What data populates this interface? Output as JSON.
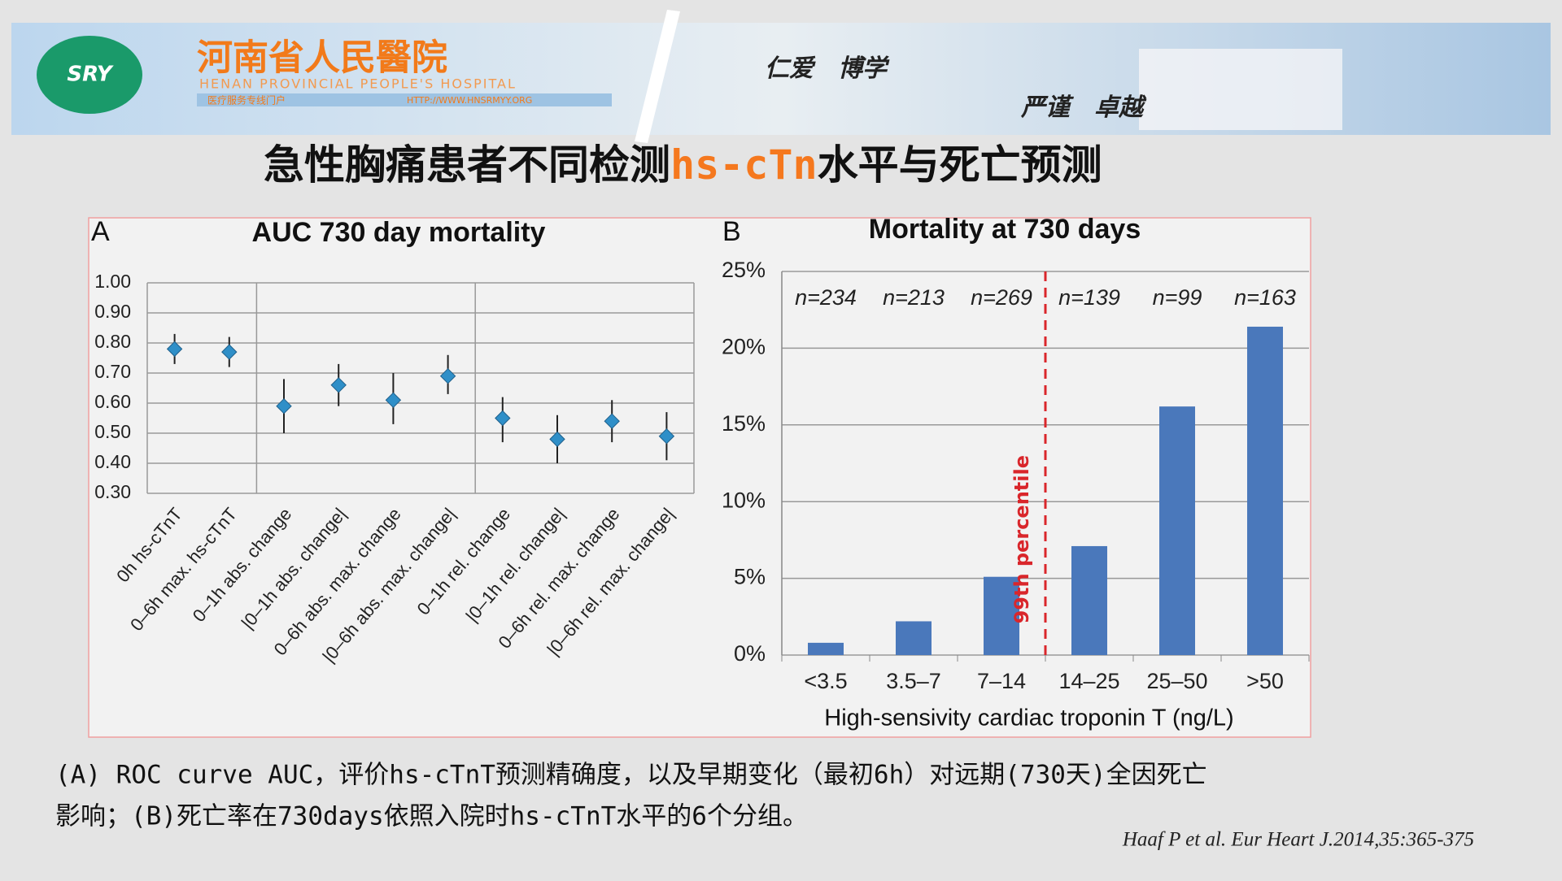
{
  "header": {
    "logo": "SRY",
    "hospital_cn": "河南省人民醫院",
    "hospital_en": "HENAN PROVINCIAL PEOPLE'S HOSPITAL",
    "portal": "医疗服务专线门户",
    "url": "HTTP://WWW.HNSRMYY.ORG",
    "motto_1": "仁爱　博学",
    "motto_2": "严谨　卓越"
  },
  "slide": {
    "title": [
      "急性胸痛患者不同检测",
      "hs-cTn",
      "水平与死亡预测"
    ],
    "caption": [
      "(A) ROC curve AUC，评价hs-cTnT预测精确度，以及早期变化（最初6h）对远期(730天)全因死亡",
      "影响；(B)死亡率在730days依照入院时hs-cTnT水平的6个分组。"
    ],
    "citation": "Haaf P et al. Eur Heart J.2014,35:365-375"
  },
  "chart_data": [
    {
      "type": "errorbar",
      "panel": "A",
      "title": "AUC 730 day mortality",
      "categories": [
        "0h hs-cTnT",
        "0–6h max. hs-cTnT",
        "0–1h abs. change",
        "|0–1h abs. change|",
        "0–6h abs. max. change",
        "|0–6h abs. max. change|",
        "0–1h rel. change",
        "|0–1h rel. change|",
        "0–6h rel. max. change",
        "|0–6h rel. max. change|"
      ],
      "values": [
        0.78,
        0.77,
        0.59,
        0.66,
        0.61,
        0.69,
        0.55,
        0.48,
        0.54,
        0.49
      ],
      "lower": [
        0.73,
        0.72,
        0.5,
        0.59,
        0.53,
        0.63,
        0.47,
        0.4,
        0.47,
        0.41
      ],
      "upper": [
        0.83,
        0.82,
        0.68,
        0.73,
        0.7,
        0.76,
        0.62,
        0.56,
        0.61,
        0.57
      ],
      "color": "#2f8fc8",
      "ylim": [
        0.3,
        1.0
      ],
      "yticks": [
        {
          "value": 0.3,
          "label": "0.30"
        },
        {
          "value": 0.4,
          "label": "0.40"
        },
        {
          "value": 0.5,
          "label": "0.50"
        },
        {
          "value": 0.6,
          "label": "0.60"
        },
        {
          "value": 0.7,
          "label": "0.70"
        },
        {
          "value": 0.8,
          "label": "0.80"
        },
        {
          "value": 0.9,
          "label": "0.90"
        },
        {
          "value": 1.0,
          "label": "1.00"
        }
      ],
      "grid": true
    },
    {
      "type": "bar",
      "panel": "B",
      "title": "Mortality at 730 days",
      "categories": [
        "<3.5",
        "3.5–7",
        "7–14",
        "14–25",
        "25–50",
        ">50"
      ],
      "values": [
        0.8,
        2.2,
        5.1,
        7.1,
        16.2,
        21.4
      ],
      "annotations": [
        "n=234",
        "n=213",
        "n=269",
        "n=139",
        "n=99",
        "n=163"
      ],
      "xlabel": "High-sensivity cardiac troponin T (ng/L)",
      "color": "#4a78bb",
      "ylim": [
        0,
        25
      ],
      "yticks": [
        {
          "value": 0,
          "label": "0%"
        },
        {
          "value": 5,
          "label": "5%"
        },
        {
          "value": 10,
          "label": "10%"
        },
        {
          "value": 15,
          "label": "15%"
        },
        {
          "value": 20,
          "label": "20%"
        },
        {
          "value": 25,
          "label": "25%"
        }
      ],
      "grid": true,
      "reference_line": {
        "label": "99th percentile",
        "color": "#d9262b"
      }
    }
  ]
}
